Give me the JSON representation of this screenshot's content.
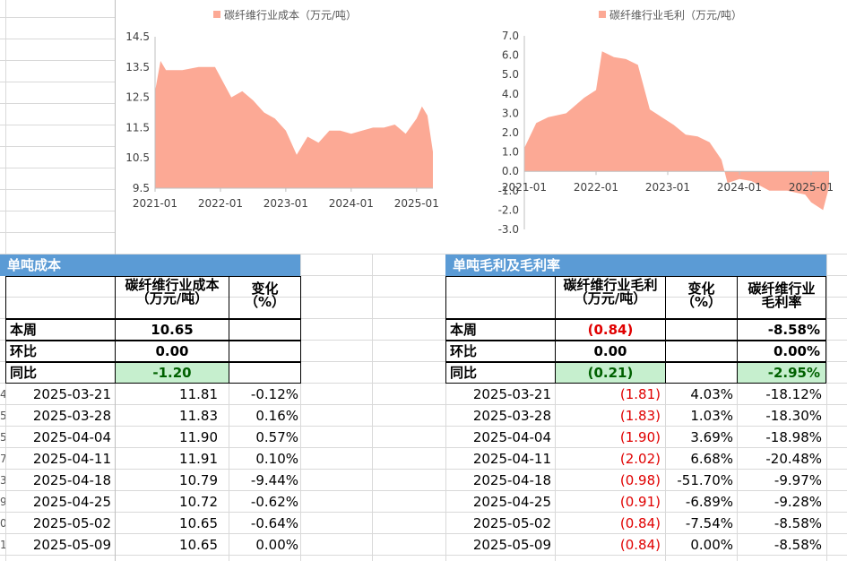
{
  "charts": {
    "left": {
      "legend": "碳纤维行业成本（万元/吨）",
      "color": "#fca995",
      "y_ticks": [
        "14.5",
        "13.5",
        "12.5",
        "11.5",
        "10.5",
        "9.5"
      ],
      "x_ticks": [
        "2021-01",
        "2022-01",
        "2023-01",
        "2024-01",
        "2025-01"
      ]
    },
    "right": {
      "legend": "碳纤维行业毛利（万元/吨）",
      "color": "#fca995",
      "y_ticks": [
        "7.0",
        "6.0",
        "5.0",
        "4.0",
        "3.0",
        "2.0",
        "1.0",
        "0.0",
        "-1.0",
        "-2.0",
        "-3.0"
      ],
      "x_ticks": [
        "2021-01",
        "2022-01",
        "2023-01",
        "2024-01",
        "2025-01"
      ]
    }
  },
  "chart_data": [
    {
      "type": "area",
      "title": "",
      "series": [
        {
          "name": "碳纤维行业成本（万元/吨）"
        }
      ],
      "x_range": [
        "2021-01",
        "2025-04"
      ],
      "ylim": [
        9.5,
        14.5
      ],
      "x": [
        "2021-01",
        "2021-02",
        "2021-03",
        "2021-06",
        "2021-09",
        "2021-12",
        "2022-03",
        "2022-05",
        "2022-07",
        "2022-09",
        "2022-11",
        "2023-01",
        "2023-03",
        "2023-05",
        "2023-07",
        "2023-09",
        "2023-11",
        "2024-01",
        "2024-03",
        "2024-05",
        "2024-07",
        "2024-09",
        "2024-11",
        "2025-01",
        "2025-02",
        "2025-03",
        "2025-04"
      ],
      "values": [
        12.7,
        13.7,
        13.4,
        13.4,
        13.5,
        13.5,
        12.5,
        12.7,
        12.4,
        12.0,
        11.8,
        11.4,
        10.6,
        11.2,
        11.0,
        11.4,
        11.4,
        11.3,
        11.4,
        11.5,
        11.5,
        11.6,
        11.3,
        11.8,
        12.2,
        11.9,
        10.7
      ]
    },
    {
      "type": "area",
      "title": "",
      "series": [
        {
          "name": "碳纤维行业毛利（万元/吨）"
        }
      ],
      "x_range": [
        "2021-01",
        "2025-04"
      ],
      "ylim": [
        -3.0,
        7.0
      ],
      "x": [
        "2021-01",
        "2021-03",
        "2021-05",
        "2021-08",
        "2021-11",
        "2022-01",
        "2022-02",
        "2022-04",
        "2022-06",
        "2022-08",
        "2022-10",
        "2022-12",
        "2023-02",
        "2023-04",
        "2023-06",
        "2023-08",
        "2023-10",
        "2023-11",
        "2024-01",
        "2024-03",
        "2024-06",
        "2024-09",
        "2024-12",
        "2025-01",
        "2025-03",
        "2025-04"
      ],
      "values": [
        1.2,
        2.5,
        2.8,
        3.0,
        3.8,
        4.2,
        6.2,
        5.9,
        5.8,
        5.5,
        3.2,
        2.8,
        2.4,
        1.9,
        1.8,
        1.5,
        0.6,
        -0.6,
        -0.4,
        -0.5,
        -1.0,
        -1.0,
        -1.2,
        -1.6,
        -2.0,
        -0.8
      ]
    }
  ],
  "left_table": {
    "header": "单吨成本",
    "col1": "碳纤维行业成本（万元/吨）",
    "col2": "变化（%）",
    "rows": [
      {
        "label": "本周",
        "value": "10.65"
      },
      {
        "label": "环比",
        "value": "0.00"
      },
      {
        "label": "同比",
        "value": "-1.20"
      }
    ],
    "history": [
      {
        "date": "2025-03-21",
        "value": "11.81",
        "change": "-0.12%"
      },
      {
        "date": "2025-03-28",
        "value": "11.83",
        "change": "0.16%"
      },
      {
        "date": "2025-04-04",
        "value": "11.90",
        "change": "0.57%"
      },
      {
        "date": "2025-04-11",
        "value": "11.91",
        "change": "0.10%"
      },
      {
        "date": "2025-04-18",
        "value": "10.79",
        "change": "-9.44%"
      },
      {
        "date": "2025-04-25",
        "value": "10.72",
        "change": "-0.62%"
      },
      {
        "date": "2025-05-02",
        "value": "10.65",
        "change": "-0.64%"
      },
      {
        "date": "2025-05-09",
        "value": "10.65",
        "change": "0.00%"
      }
    ]
  },
  "right_table": {
    "header": "单吨毛利及毛利率",
    "col1": "碳纤维行业毛利（万元/吨）",
    "col2": "变化（%）",
    "col3": "碳纤维行业毛利率",
    "rows": [
      {
        "label": "本周",
        "value": "(0.84)",
        "rate": "-8.58%"
      },
      {
        "label": "环比",
        "value": "0.00",
        "rate": "0.00%"
      },
      {
        "label": "同比",
        "value": "(0.21)",
        "rate": "-2.95%"
      }
    ],
    "history": [
      {
        "date": "2025-03-21",
        "value": "(1.81)",
        "change": "4.03%",
        "rate": "-18.12%"
      },
      {
        "date": "2025-03-28",
        "value": "(1.83)",
        "change": "1.03%",
        "rate": "-18.30%"
      },
      {
        "date": "2025-04-04",
        "value": "(1.90)",
        "change": "3.69%",
        "rate": "-18.98%"
      },
      {
        "date": "2025-04-11",
        "value": "(2.02)",
        "change": "6.68%",
        "rate": "-20.48%"
      },
      {
        "date": "2025-04-18",
        "value": "(0.98)",
        "change": "-51.70%",
        "rate": "-9.97%"
      },
      {
        "date": "2025-04-25",
        "value": "(0.91)",
        "change": "-6.89%",
        "rate": "-9.28%"
      },
      {
        "date": "2025-05-02",
        "value": "(0.84)",
        "change": "-7.54%",
        "rate": "-8.58%"
      },
      {
        "date": "2025-05-09",
        "value": "(0.84)",
        "change": "0.00%",
        "rate": "-8.58%"
      }
    ]
  },
  "row_numbers": [
    "4",
    "5",
    "5",
    "7",
    "3",
    "9",
    "0",
    "1"
  ]
}
